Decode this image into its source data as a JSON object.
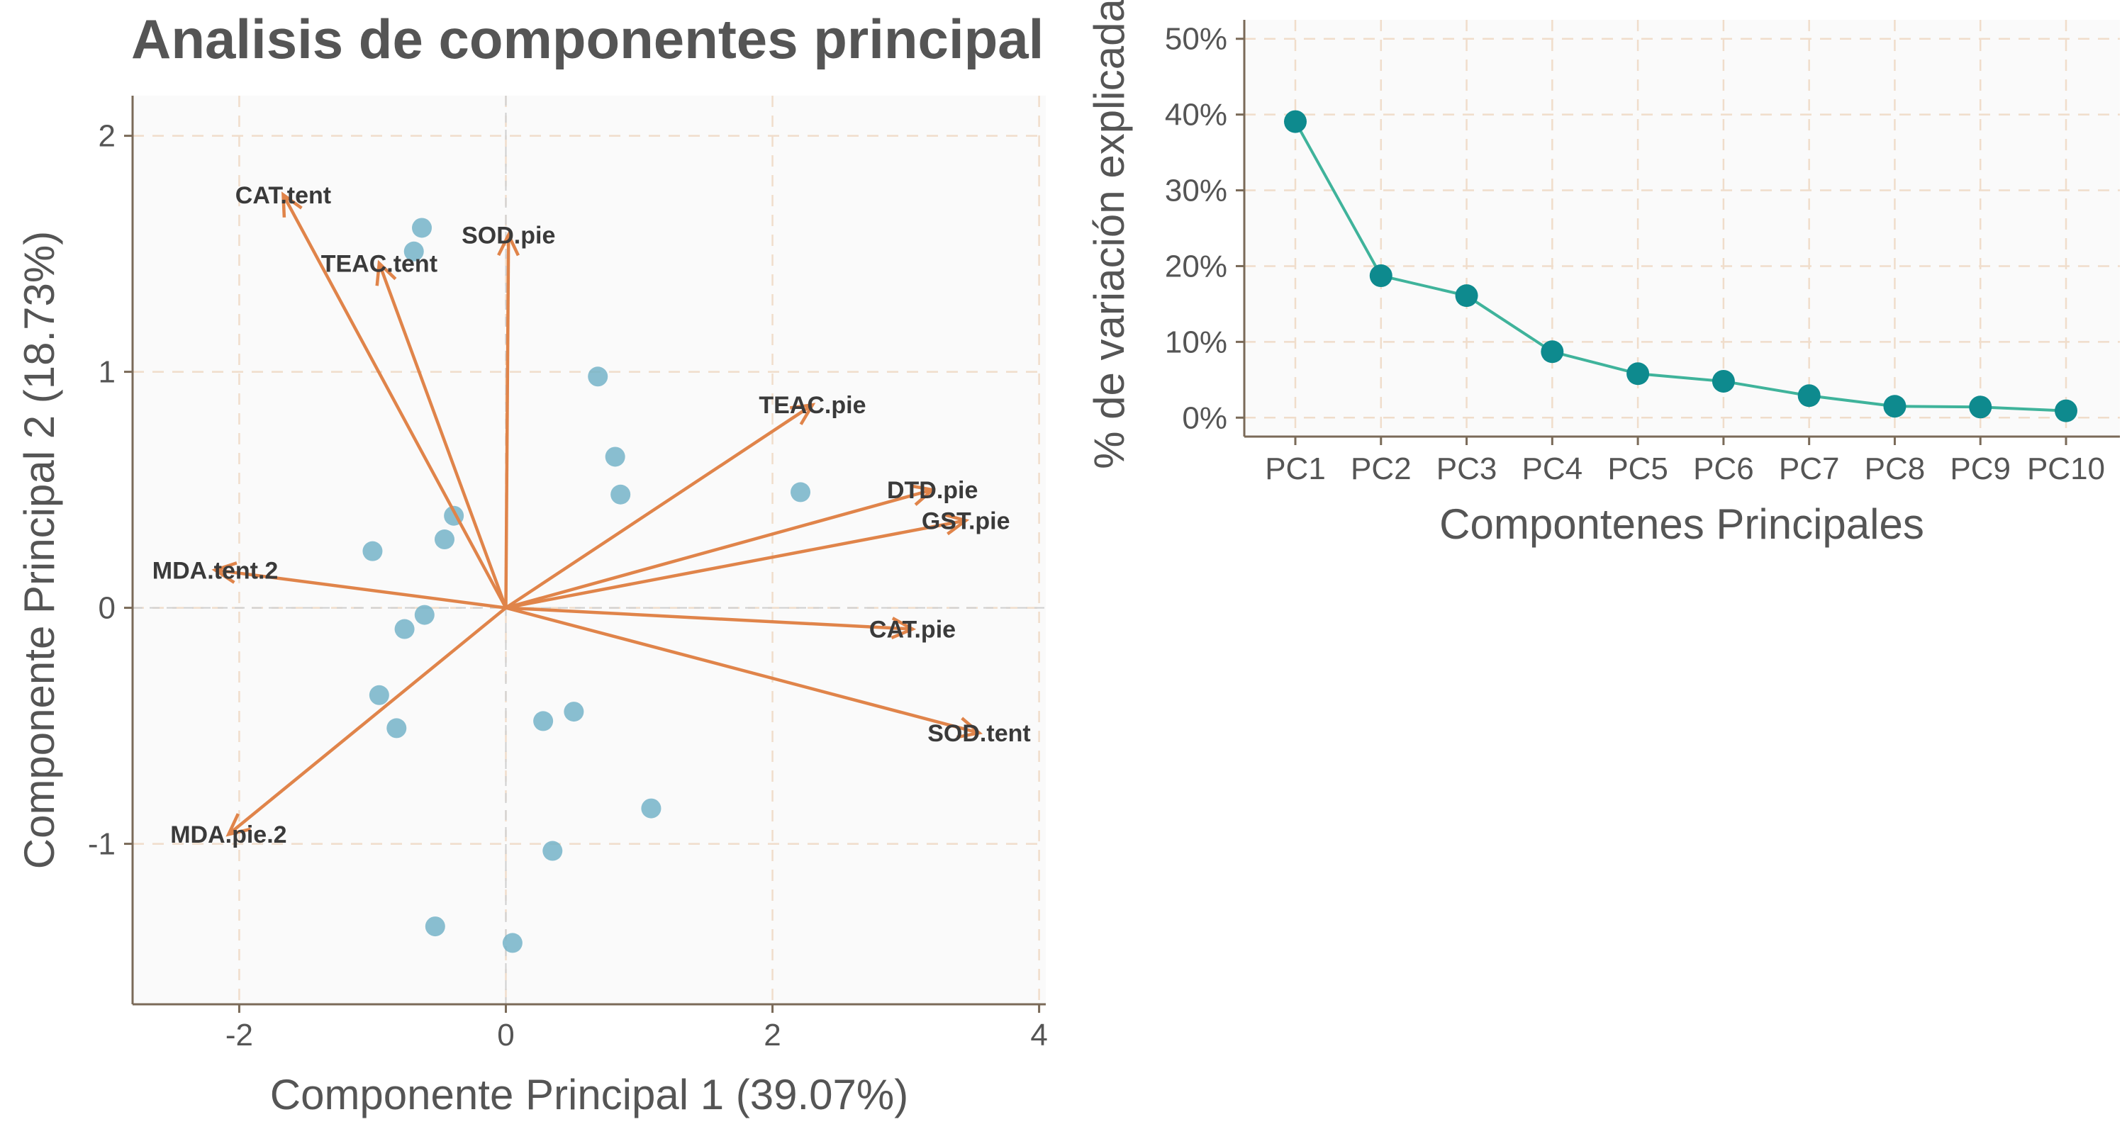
{
  "chart_data": [
    {
      "type": "scatter",
      "title": "Analisis de componentes principal",
      "xlabel": "Componente Principal 1 (39.07%)",
      "ylabel": "Componente Principal 2 (18.73%)",
      "xlim": [
        -2.8,
        4.05
      ],
      "ylim": [
        -1.68,
        2.17
      ],
      "x_ticks": [
        -2,
        0,
        2,
        4
      ],
      "y_ticks": [
        -1,
        0,
        1,
        2
      ],
      "grid": true,
      "point_color": "#74b3c8",
      "arrow_color": "#e0844a",
      "points": [
        {
          "x": -0.63,
          "y": 1.61
        },
        {
          "x": -0.69,
          "y": 1.51
        },
        {
          "x": 0.69,
          "y": 0.98
        },
        {
          "x": 0.82,
          "y": 0.64
        },
        {
          "x": 0.86,
          "y": 0.48
        },
        {
          "x": 2.21,
          "y": 0.49
        },
        {
          "x": -0.39,
          "y": 0.39
        },
        {
          "x": -0.46,
          "y": 0.29
        },
        {
          "x": -1.0,
          "y": 0.24
        },
        {
          "x": -0.61,
          "y": -0.03
        },
        {
          "x": -0.76,
          "y": -0.09
        },
        {
          "x": -0.95,
          "y": -0.37
        },
        {
          "x": -0.82,
          "y": -0.51
        },
        {
          "x": 0.28,
          "y": -0.48
        },
        {
          "x": 0.51,
          "y": -0.44
        },
        {
          "x": 1.09,
          "y": -0.85
        },
        {
          "x": 0.35,
          "y": -1.03
        },
        {
          "x": -0.53,
          "y": -1.35
        },
        {
          "x": 0.05,
          "y": -1.42
        }
      ],
      "loadings": [
        {
          "name": "CAT.tent",
          "x": -1.67,
          "y": 1.75
        },
        {
          "name": "TEAC.tent",
          "x": -0.95,
          "y": 1.46
        },
        {
          "name": "SOD.pie",
          "x": 0.02,
          "y": 1.58
        },
        {
          "name": "TEAC.pie",
          "x": 2.3,
          "y": 0.86
        },
        {
          "name": "DTD.pie",
          "x": 3.2,
          "y": 0.5
        },
        {
          "name": "GST.pie",
          "x": 3.45,
          "y": 0.37
        },
        {
          "name": "MDA.tent.2",
          "x": -2.18,
          "y": 0.16
        },
        {
          "name": "CAT.pie",
          "x": 3.05,
          "y": -0.09
        },
        {
          "name": "SOD.tent",
          "x": 3.55,
          "y": -0.53
        },
        {
          "name": "MDA.pie.2",
          "x": -2.08,
          "y": -0.96
        }
      ]
    },
    {
      "type": "line",
      "title": "",
      "xlabel": "Compontenes Principales",
      "ylabel": "% de variación explicada",
      "categories": [
        "PC1",
        "PC2",
        "PC3",
        "PC4",
        "PC5",
        "PC6",
        "PC7",
        "PC8",
        "PC9",
        "PC10"
      ],
      "values": [
        39.07,
        18.73,
        16.1,
        8.7,
        5.8,
        4.8,
        2.9,
        1.5,
        1.4,
        0.9
      ],
      "ylim": [
        -2.5,
        52.5
      ],
      "y_ticks": [
        0,
        10,
        20,
        30,
        40,
        50
      ],
      "y_tick_labels": [
        "0%",
        "10%",
        "20%",
        "30%",
        "40%",
        "50%"
      ],
      "grid": true,
      "line_color": "#3fb39b",
      "point_color": "#0e8a8e"
    }
  ]
}
